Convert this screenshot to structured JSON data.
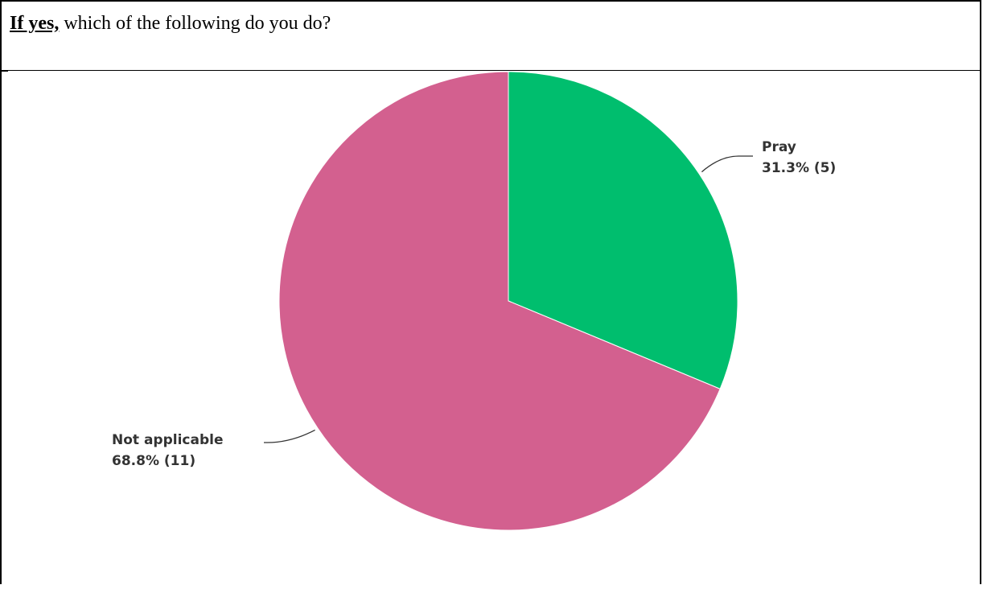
{
  "question": {
    "lead": "If yes,",
    "rest": " which of the following do you do?"
  },
  "chart_data": {
    "type": "pie",
    "slices": [
      {
        "name": "Pray",
        "percent": 31.3,
        "count": 5,
        "percent_label": "31.3% (5)",
        "color": "#00be6e"
      },
      {
        "name": "Not applicable",
        "percent": 68.8,
        "count": 11,
        "percent_label": "68.8% (11)",
        "color": "#d3608f"
      }
    ],
    "legend": "none"
  }
}
